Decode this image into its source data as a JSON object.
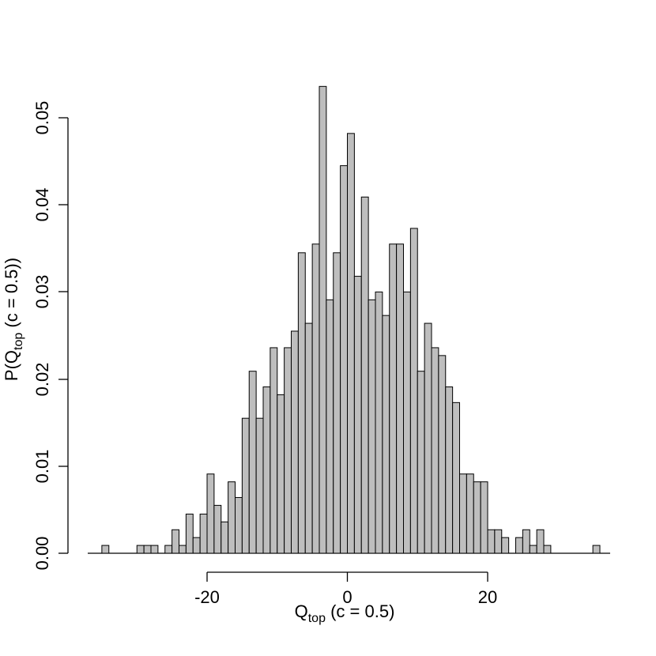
{
  "chart_data": {
    "type": "bar",
    "title": "",
    "xlabel": {
      "base": "Q",
      "sub": "top",
      "rest": " (c = 0.5)"
    },
    "ylabel": {
      "pre": "P(Q",
      "sub": "top",
      "post": " (c = 0.5))"
    },
    "xlim": [
      -36,
      36
    ],
    "ylim": [
      0,
      0.0539
    ],
    "bin_width": 1,
    "x_ticks": [
      -20,
      0,
      20
    ],
    "x_tick_labels": [
      "-20",
      "0",
      "20"
    ],
    "y_ticks": [
      0,
      0.01,
      0.02,
      0.03,
      0.04,
      0.05
    ],
    "y_tick_labels": [
      "0.00",
      "0.01",
      "0.02",
      "0.03",
      "0.04",
      "0.05"
    ],
    "grid": false,
    "bar_fill": "#bebebe",
    "bar_stroke": "#000000",
    "bins": [
      {
        "x0": -35,
        "x1": -34,
        "y": 0.0009
      },
      {
        "x0": -30,
        "x1": -29,
        "y": 0.0009
      },
      {
        "x0": -29,
        "x1": -28,
        "y": 0.0009
      },
      {
        "x0": -28,
        "x1": -27,
        "y": 0.0009
      },
      {
        "x0": -26,
        "x1": -25,
        "y": 0.0009
      },
      {
        "x0": -25,
        "x1": -24,
        "y": 0.0027
      },
      {
        "x0": -24,
        "x1": -23,
        "y": 0.0009
      },
      {
        "x0": -23,
        "x1": -22,
        "y": 0.0045
      },
      {
        "x0": -22,
        "x1": -21,
        "y": 0.0018
      },
      {
        "x0": -21,
        "x1": -20,
        "y": 0.0045
      },
      {
        "x0": -20,
        "x1": -19,
        "y": 0.0091
      },
      {
        "x0": -19,
        "x1": -18,
        "y": 0.0055
      },
      {
        "x0": -18,
        "x1": -17,
        "y": 0.0036
      },
      {
        "x0": -17,
        "x1": -16,
        "y": 0.0082
      },
      {
        "x0": -16,
        "x1": -15,
        "y": 0.0064
      },
      {
        "x0": -15,
        "x1": -14,
        "y": 0.0155
      },
      {
        "x0": -14,
        "x1": -13,
        "y": 0.0209
      },
      {
        "x0": -13,
        "x1": -12,
        "y": 0.0155
      },
      {
        "x0": -12,
        "x1": -11,
        "y": 0.0191
      },
      {
        "x0": -11,
        "x1": -10,
        "y": 0.0236
      },
      {
        "x0": -10,
        "x1": -9,
        "y": 0.0182
      },
      {
        "x0": -9,
        "x1": -8,
        "y": 0.0236
      },
      {
        "x0": -8,
        "x1": -7,
        "y": 0.0255
      },
      {
        "x0": -7,
        "x1": -6,
        "y": 0.0345
      },
      {
        "x0": -6,
        "x1": -5,
        "y": 0.0264
      },
      {
        "x0": -5,
        "x1": -4,
        "y": 0.0355
      },
      {
        "x0": -4,
        "x1": -3,
        "y": 0.0536
      },
      {
        "x0": -3,
        "x1": -2,
        "y": 0.0291
      },
      {
        "x0": -2,
        "x1": -1,
        "y": 0.0345
      },
      {
        "x0": -1,
        "x1": 0,
        "y": 0.0445
      },
      {
        "x0": 0,
        "x1": 1,
        "y": 0.0482
      },
      {
        "x0": 1,
        "x1": 2,
        "y": 0.0318
      },
      {
        "x0": 2,
        "x1": 3,
        "y": 0.0409
      },
      {
        "x0": 3,
        "x1": 4,
        "y": 0.0291
      },
      {
        "x0": 4,
        "x1": 5,
        "y": 0.03
      },
      {
        "x0": 5,
        "x1": 6,
        "y": 0.0273
      },
      {
        "x0": 6,
        "x1": 7,
        "y": 0.0355
      },
      {
        "x0": 7,
        "x1": 8,
        "y": 0.0355
      },
      {
        "x0": 8,
        "x1": 9,
        "y": 0.03
      },
      {
        "x0": 9,
        "x1": 10,
        "y": 0.0373
      },
      {
        "x0": 10,
        "x1": 11,
        "y": 0.0209
      },
      {
        "x0": 11,
        "x1": 12,
        "y": 0.0264
      },
      {
        "x0": 12,
        "x1": 13,
        "y": 0.0236
      },
      {
        "x0": 13,
        "x1": 14,
        "y": 0.0227
      },
      {
        "x0": 14,
        "x1": 15,
        "y": 0.0191
      },
      {
        "x0": 15,
        "x1": 16,
        "y": 0.0173
      },
      {
        "x0": 16,
        "x1": 17,
        "y": 0.0091
      },
      {
        "x0": 17,
        "x1": 18,
        "y": 0.0091
      },
      {
        "x0": 18,
        "x1": 19,
        "y": 0.0082
      },
      {
        "x0": 19,
        "x1": 20,
        "y": 0.0082
      },
      {
        "x0": 20,
        "x1": 21,
        "y": 0.0027
      },
      {
        "x0": 21,
        "x1": 22,
        "y": 0.0027
      },
      {
        "x0": 22,
        "x1": 23,
        "y": 0.0018
      },
      {
        "x0": 24,
        "x1": 25,
        "y": 0.0018
      },
      {
        "x0": 25,
        "x1": 26,
        "y": 0.0027
      },
      {
        "x0": 26,
        "x1": 27,
        "y": 0.0009
      },
      {
        "x0": 27,
        "x1": 28,
        "y": 0.0027
      },
      {
        "x0": 28,
        "x1": 29,
        "y": 0.0009
      },
      {
        "x0": 35,
        "x1": 36,
        "y": 0.0009
      }
    ]
  }
}
